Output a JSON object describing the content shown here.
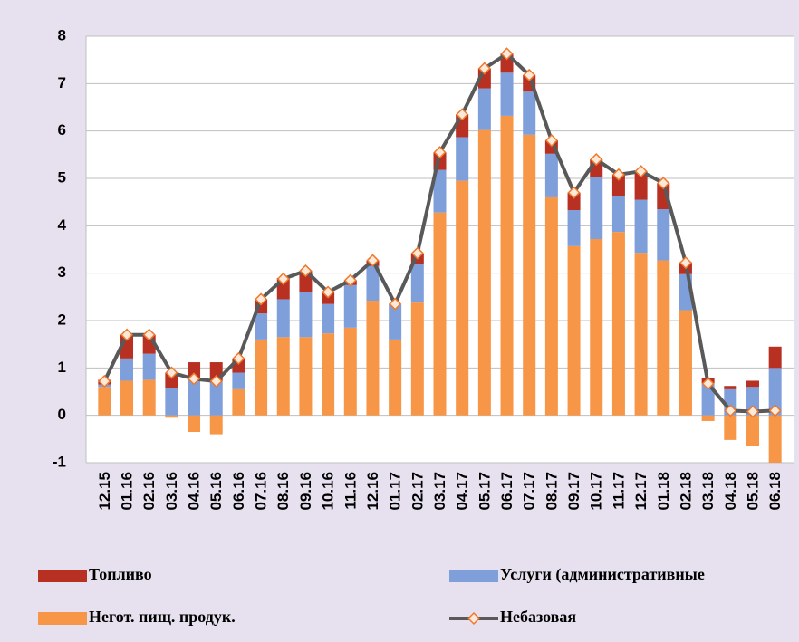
{
  "chart_data": {
    "type": "bar",
    "categories": [
      "12.15",
      "01.16",
      "02.16",
      "03.16",
      "04.16",
      "05.16",
      "06.16",
      "07.16",
      "08.16",
      "09.16",
      "10.16",
      "11.16",
      "12.16",
      "01.17",
      "02.17",
      "03.17",
      "04.17",
      "05.17",
      "06.17",
      "07.17",
      "08.17",
      "09.17",
      "10.17",
      "11.17",
      "12.17",
      "01.18",
      "02.18",
      "03.18",
      "04.18",
      "05.18",
      "06.18"
    ],
    "series": [
      {
        "name": "Негот. пищ. продук.",
        "color": "#f79646",
        "values": [
          0.6,
          0.73,
          0.75,
          -0.05,
          -0.35,
          -0.4,
          0.55,
          1.6,
          1.65,
          1.65,
          1.73,
          1.85,
          2.42,
          1.6,
          2.38,
          4.28,
          4.95,
          6.02,
          6.32,
          5.92,
          4.6,
          3.57,
          3.72,
          3.87,
          3.43,
          3.27,
          2.22,
          -0.12,
          -0.52,
          -0.65,
          -1.05
        ]
      },
      {
        "name": "Услуги (административные",
        "color": "#7f9fdb",
        "values": [
          0.05,
          0.47,
          0.55,
          0.57,
          0.75,
          0.72,
          0.35,
          0.55,
          0.8,
          0.95,
          0.62,
          0.9,
          0.73,
          0.75,
          0.82,
          0.9,
          0.92,
          0.88,
          0.91,
          0.91,
          0.92,
          0.76,
          1.3,
          0.76,
          1.12,
          1.08,
          0.76,
          0.68,
          0.55,
          0.6,
          1.0
        ]
      },
      {
        "name": "Топливо",
        "color": "#b83022",
        "values": [
          0.1,
          0.5,
          0.4,
          0.33,
          0.37,
          0.4,
          0.3,
          0.3,
          0.45,
          0.45,
          0.25,
          0.1,
          0.12,
          0,
          0.22,
          0.37,
          0.48,
          0.42,
          0.4,
          0.35,
          0.28,
          0.37,
          0.38,
          0.45,
          0.6,
          0.55,
          0.25,
          0.1,
          0.07,
          0.13,
          0.45
        ]
      },
      {
        "name": "Небазовая",
        "type": "line",
        "color": "#595959",
        "marker_color": "#f0782a",
        "values": [
          0.72,
          1.7,
          1.7,
          0.9,
          0.77,
          0.72,
          1.2,
          2.45,
          2.88,
          3.05,
          2.6,
          2.85,
          3.27,
          2.35,
          3.42,
          5.55,
          6.35,
          7.32,
          7.63,
          7.18,
          5.8,
          4.7,
          5.4,
          5.08,
          5.15,
          4.9,
          3.22,
          0.67,
          0.1,
          0.08,
          0.1
        ]
      }
    ],
    "ylim": [
      -1,
      8
    ],
    "yticks": [
      -1,
      0,
      1,
      2,
      3,
      4,
      5,
      6,
      7,
      8
    ],
    "grid": true
  }
}
